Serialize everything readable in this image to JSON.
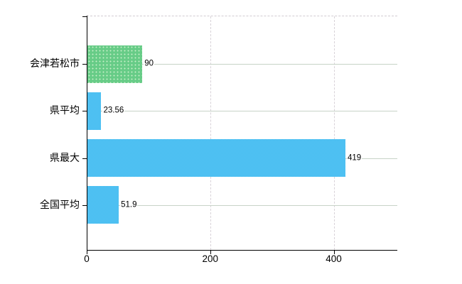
{
  "chart_data": {
    "type": "bar",
    "orientation": "horizontal",
    "title": "",
    "xlabel": "",
    "ylabel": "",
    "categories": [
      "会津若松市",
      "県平均",
      "県最大",
      "全国平均"
    ],
    "values": [
      90,
      23.56,
      419,
      51.9
    ],
    "value_labels": [
      "90",
      "23.56",
      "419",
      "51.9"
    ],
    "bar_color_names": [
      "green",
      "blue",
      "blue",
      "blue"
    ],
    "bar_colors": [
      "#67cc87",
      "#3fbef4",
      "#3fbef4",
      "#3fbef4"
    ],
    "xlim": [
      0,
      503
    ],
    "x_ticks": [
      0,
      200,
      400
    ],
    "x_tick_labels": [
      "0",
      "200",
      "400"
    ],
    "legend_position": "none",
    "grid": {
      "horizontal_style": "solid",
      "horizontal_color": "#c7d3c7",
      "vertical_style": "dashed",
      "vertical_color": "#d8d2d8",
      "top_border_style": "dashed",
      "top_border_color": "#d2ccd2"
    }
  },
  "colors": {
    "background": "#ffffff",
    "axis": "#000000",
    "text": "#000000",
    "highlight_bar_green": "#67cc87",
    "default_bar_blue": "#3fbef4"
  }
}
